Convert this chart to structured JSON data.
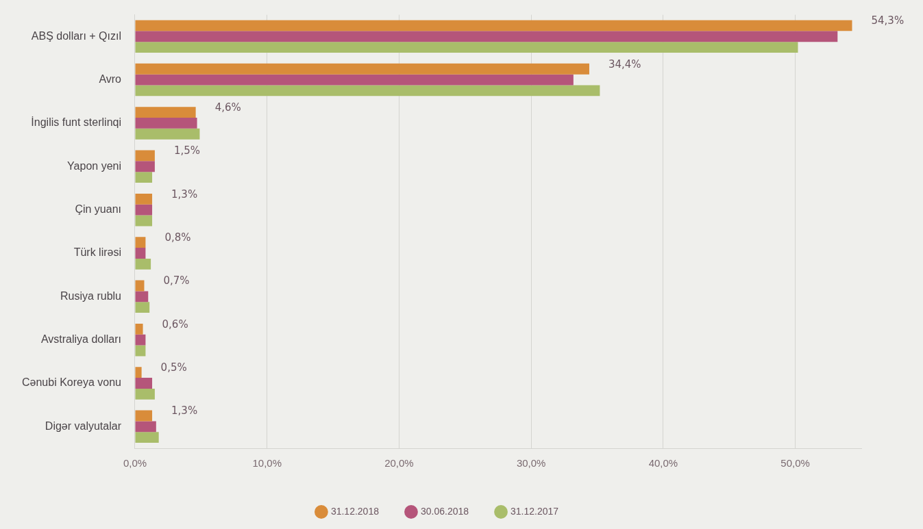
{
  "chart_data": {
    "type": "bar",
    "orientation": "horizontal",
    "categories": [
      "ABŞ dolları + Qızıl",
      "Avro",
      "İngilis funt sterlinqi",
      "Yapon yeni",
      "Çin yuanı",
      "Türk lirəsi",
      "Rusiya rublu",
      "Avstraliya dolları",
      "Cənubi Koreya vonu",
      "Digər valyutalar"
    ],
    "series": [
      {
        "name": "31.12.2018",
        "color": "#d98c3a",
        "values": [
          54.3,
          34.4,
          4.6,
          1.5,
          1.3,
          0.8,
          0.7,
          0.6,
          0.5,
          1.3
        ],
        "value_labels": [
          "54,3%",
          "34,4%",
          "4,6%",
          "1,5%",
          "1,3%",
          "0,8%",
          "0,7%",
          "0,6%",
          "0,5%",
          "1,3%"
        ]
      },
      {
        "name": "30.06.2018",
        "color": "#b5557a",
        "values": [
          53.2,
          33.2,
          4.7,
          1.5,
          1.3,
          0.8,
          1.0,
          0.8,
          1.3,
          1.6
        ]
      },
      {
        "name": "31.12.2017",
        "color": "#a9bd6a",
        "values": [
          50.2,
          35.2,
          4.9,
          1.3,
          1.3,
          1.2,
          1.1,
          0.8,
          1.5,
          1.8
        ]
      }
    ],
    "xlim": [
      0,
      55
    ],
    "xticks": [
      {
        "value": 0,
        "label": "0,0%"
      },
      {
        "value": 10,
        "label": "10,0%"
      },
      {
        "value": 20,
        "label": "20,0%"
      },
      {
        "value": 30,
        "label": "30,0%"
      },
      {
        "value": 40,
        "label": "40,0%"
      },
      {
        "value": 50,
        "label": "50,0%"
      }
    ],
    "grid": "x",
    "legend": "bottom"
  }
}
